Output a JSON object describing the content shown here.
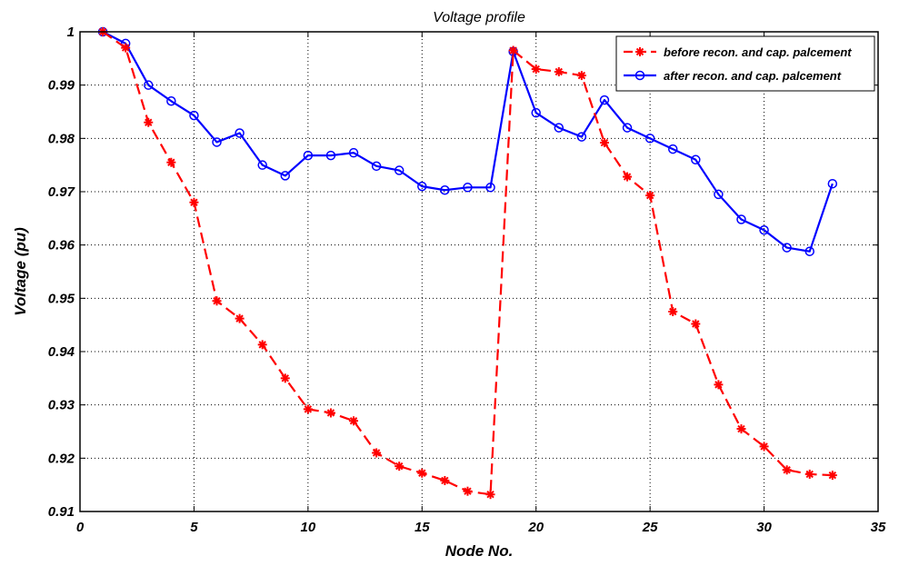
{
  "chart_data": {
    "type": "line",
    "title": "Voltage profile",
    "xlabel": "Node No.",
    "ylabel": "Voltage (pu)",
    "xlim": [
      0,
      35
    ],
    "ylim": [
      0.91,
      1.0
    ],
    "x_ticks": [
      "0",
      "5",
      "10",
      "15",
      "20",
      "25",
      "30",
      "35"
    ],
    "y_ticks": [
      "0.91",
      "0.92",
      "0.93",
      "0.94",
      "0.95",
      "0.96",
      "0.97",
      "0.98",
      "0.99",
      "1"
    ],
    "grid": true,
    "legend_position": "top-right",
    "x": [
      1,
      2,
      3,
      4,
      5,
      6,
      7,
      8,
      9,
      10,
      11,
      12,
      13,
      14,
      15,
      16,
      17,
      18,
      19,
      20,
      21,
      22,
      23,
      24,
      25,
      26,
      27,
      28,
      29,
      30,
      31,
      32,
      33
    ],
    "series": [
      {
        "name": "before recon. and cap. palcement",
        "color": "#ff0000",
        "line_style": "dashed",
        "marker": "star",
        "values": [
          1.0,
          0.997,
          0.983,
          0.9755,
          0.968,
          0.9495,
          0.9462,
          0.9413,
          0.935,
          0.9292,
          0.9285,
          0.927,
          0.921,
          0.9185,
          0.9172,
          0.9158,
          0.9138,
          0.9132,
          0.9965,
          0.993,
          0.9925,
          0.9918,
          0.9792,
          0.9728,
          0.9693,
          0.9475,
          0.9452,
          0.9338,
          0.9255,
          0.9222,
          0.9178,
          0.917,
          0.9168
        ]
      },
      {
        "name": "after recon. and cap. palcement",
        "color": "#0000ff",
        "line_style": "solid",
        "marker": "circle",
        "values": [
          1.0,
          0.9978,
          0.99,
          0.987,
          0.9843,
          0.9793,
          0.981,
          0.975,
          0.973,
          0.9768,
          0.9768,
          0.9773,
          0.9748,
          0.974,
          0.971,
          0.9703,
          0.9708,
          0.9708,
          0.9963,
          0.9848,
          0.982,
          0.9803,
          0.9872,
          0.982,
          0.98,
          0.978,
          0.976,
          0.9695,
          0.9648,
          0.9628,
          0.9595,
          0.9588,
          0.9715
        ]
      }
    ]
  }
}
